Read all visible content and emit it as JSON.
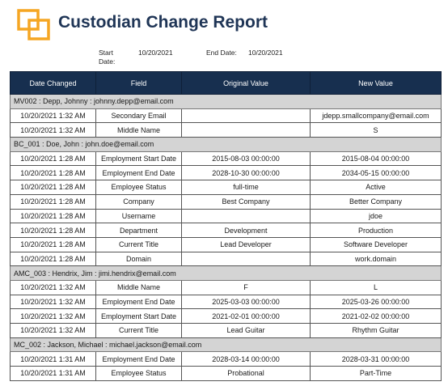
{
  "report": {
    "title": "Custodian Change Report",
    "start_label": "Start Date:",
    "start_value": "10/20/2021",
    "end_label": "End Date:",
    "end_value": "10/20/2021",
    "logo_color": "#f5a623"
  },
  "table": {
    "headers": [
      "Date Changed",
      "Field",
      "Original Value",
      "New Value"
    ],
    "groups": [
      {
        "title": "MV002 : Depp, Johnny : johnny.depp@email.com",
        "rows": [
          [
            "10/20/2021 1:32 AM",
            "Secondary Email",
            "",
            "jdepp.smallcompany@email.com"
          ],
          [
            "10/20/2021 1:32 AM",
            "Middle Name",
            "",
            "S"
          ]
        ]
      },
      {
        "title": "BC_001 : Doe, John : john.doe@email.com",
        "rows": [
          [
            "10/20/2021 1:28 AM",
            "Employment Start Date",
            "2015-08-03 00:00:00",
            "2015-08-04 00:00:00"
          ],
          [
            "10/20/2021 1:28 AM",
            "Employment End Date",
            "2028-10-30 00:00:00",
            "2034-05-15 00:00:00"
          ],
          [
            "10/20/2021 1:28 AM",
            "Employee Status",
            "full-time",
            "Active"
          ],
          [
            "10/20/2021 1:28 AM",
            "Company",
            "Best Company",
            "Better Company"
          ],
          [
            "10/20/2021 1:28 AM",
            "Username",
            "",
            "jdoe"
          ],
          [
            "10/20/2021 1:28 AM",
            "Department",
            "Development",
            "Production"
          ],
          [
            "10/20/2021 1:28 AM",
            "Current Title",
            "Lead Developer",
            "Software Developer"
          ],
          [
            "10/20/2021 1:28 AM",
            "Domain",
            "",
            "work.domain"
          ]
        ]
      },
      {
        "title": "AMC_003 : Hendrix, Jim : jimi.hendrix@email.com",
        "rows": [
          [
            "10/20/2021 1:32 AM",
            "Middle Name",
            "F",
            "L"
          ],
          [
            "10/20/2021 1:32 AM",
            "Employment End Date",
            "2025-03-03 00:00:00",
            "2025-03-26 00:00:00"
          ],
          [
            "10/20/2021 1:32 AM",
            "Employment Start Date",
            "2021-02-01 00:00:00",
            "2021-02-02 00:00:00"
          ],
          [
            "10/20/2021 1:32 AM",
            "Current Title",
            "Lead Guitar",
            "Rhythm Guitar"
          ]
        ]
      },
      {
        "title": "MC_002 : Jackson, Michael   : michael.jackson@email.com",
        "rows": [
          [
            "10/20/2021 1:31 AM",
            "Employment End Date",
            "2028-03-14 00:00:00",
            "2028-03-31 00:00:00"
          ],
          [
            "10/20/2021 1:31 AM",
            "Employee Status",
            "Probational",
            "Part-Time"
          ]
        ]
      }
    ]
  }
}
